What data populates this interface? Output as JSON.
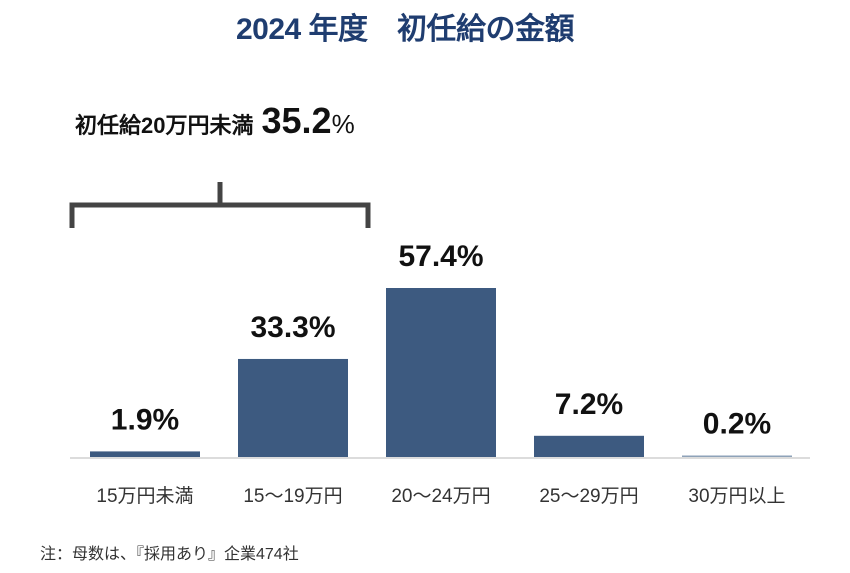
{
  "chart_data": {
    "type": "bar",
    "title": "2024 年度　初任給の金額",
    "categories": [
      "15万円未満",
      "15〜19万円",
      "20〜24万円",
      "25〜29万円",
      "30万円以上"
    ],
    "values": [
      1.9,
      33.3,
      57.4,
      7.2,
      0.2
    ],
    "value_labels": [
      "1.9%",
      "33.3%",
      "57.4%",
      "7.2%",
      "0.2%"
    ],
    "xlabel": "",
    "ylabel": "",
    "ylim": [
      0,
      60
    ],
    "grid": false,
    "bar_color": "#3d5a80",
    "annotation": {
      "label": "初任給20万円未満",
      "value": "35.2",
      "unit": "%",
      "spans": [
        "15万円未満",
        "15〜19万円"
      ]
    },
    "note": "注：母数は、『採用あり』企業474社"
  }
}
